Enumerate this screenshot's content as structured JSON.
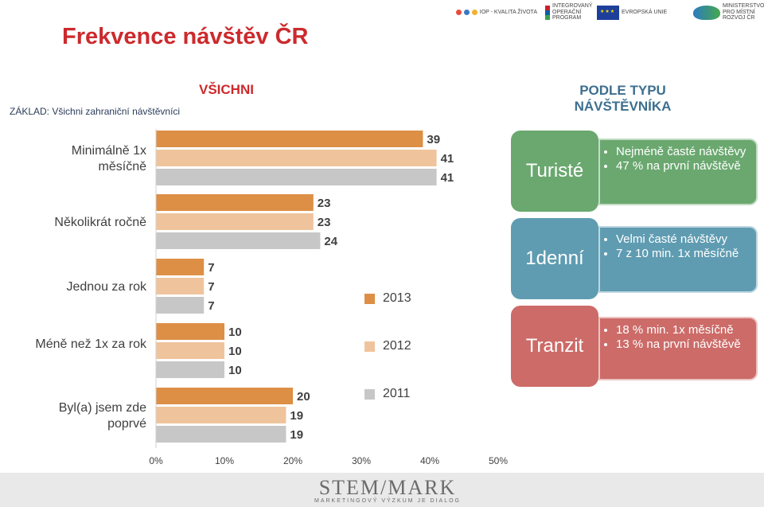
{
  "header": {
    "title": "Frekvence návštěv ČR",
    "basis": "ZÁKLAD: Všichni zahraniční návštěvníci",
    "section_all": "VŠICHNI",
    "section_type": "PODLE TYPU NÁVŠTĚVNÍKA",
    "logos": [
      "IOP - KVALITA ŽIVOTA",
      "INTEGROVANÝ OPERAČNÍ PROGRAM",
      "EVROPSKÁ UNIE",
      "MINISTERSTVO PRO MÍSTNÍ ROZVOJ ČR"
    ]
  },
  "chart_data": {
    "type": "bar",
    "orientation": "horizontal",
    "categories": [
      "Minimálně 1x měsíčně",
      "Několikrát ročně",
      "Jednou za rok",
      "Méně než 1x za rok",
      "Byl(a) jsem zde poprvé"
    ],
    "series": [
      {
        "name": "2013",
        "values": [
          39,
          23,
          7,
          10,
          20
        ],
        "color": "#dd8f46"
      },
      {
        "name": "2012",
        "values": [
          41,
          23,
          7,
          10,
          19
        ],
        "color": "#efc49c"
      },
      {
        "name": "2011",
        "values": [
          41,
          24,
          7,
          10,
          19
        ],
        "color": "#c7c7c7"
      }
    ],
    "xlim": [
      0,
      50
    ],
    "x_ticks": [
      "0%",
      "10%",
      "20%",
      "30%",
      "40%",
      "50%"
    ],
    "grid": false,
    "legend_position": "center"
  },
  "visitor_types": [
    {
      "label": "Turisté",
      "color": "#6aa86f",
      "bullets": [
        "Nejméně časté návštěvy",
        "47 % na první návštěvě"
      ]
    },
    {
      "label": "1denní",
      "color": "#5f9cb1",
      "bullets": [
        "Velmi časté návštěvy",
        "7 z 10 min. 1x měsíčně"
      ]
    },
    {
      "label": "Tranzit",
      "color": "#cc6b68",
      "bullets": [
        "18 % min. 1x měsíčně",
        "13 % na první návštěvě"
      ]
    }
  ],
  "footer": {
    "brand": "STEM/MARK",
    "tagline": "MARKETINGOVÝ VÝZKUM JE DIALOG"
  }
}
